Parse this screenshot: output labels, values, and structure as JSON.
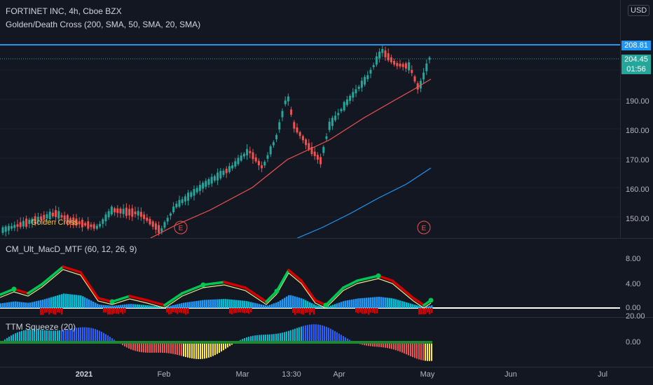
{
  "header": {
    "symbol_line": "FORTINET INC, 4h, Cboe BZX",
    "indicator_line": "Golden/Death Cross (200, SMA, 50, SMA, 20, SMA)",
    "currency": "USD"
  },
  "main_pane": {
    "price_ticks": [
      "190.00",
      "180.00",
      "170.00",
      "160.00",
      "150.00"
    ],
    "high_tag": "208.81",
    "last_price_tag": "204.45",
    "countdown_tag": "01:56",
    "golden_cross_label": "Golden Cross",
    "earnings_markers": [
      "E",
      "E"
    ]
  },
  "macd_pane": {
    "title": "CM_Ult_MacD_MTF (60, 12, 26, 9)",
    "ticks": [
      "8.00",
      "4.00",
      "0.00"
    ]
  },
  "ttm_pane": {
    "title": "TTM Squeeze (20)",
    "ticks": [
      "20.00",
      "0.00"
    ]
  },
  "time_axis": {
    "labels": [
      "2021",
      "Feb",
      "Mar",
      "13:30",
      "Apr",
      "May",
      "Jun",
      "Jul"
    ]
  },
  "colors": {
    "background": "#131722",
    "up_candle": "#26a69a",
    "down_candle": "#ef5350",
    "sma_long": "#2196f3",
    "sma_short": "#ef5350",
    "high_line": "#2196f3",
    "macd_up": "#00c853",
    "macd_down": "#d50000",
    "signal": "#f0e68c"
  }
}
